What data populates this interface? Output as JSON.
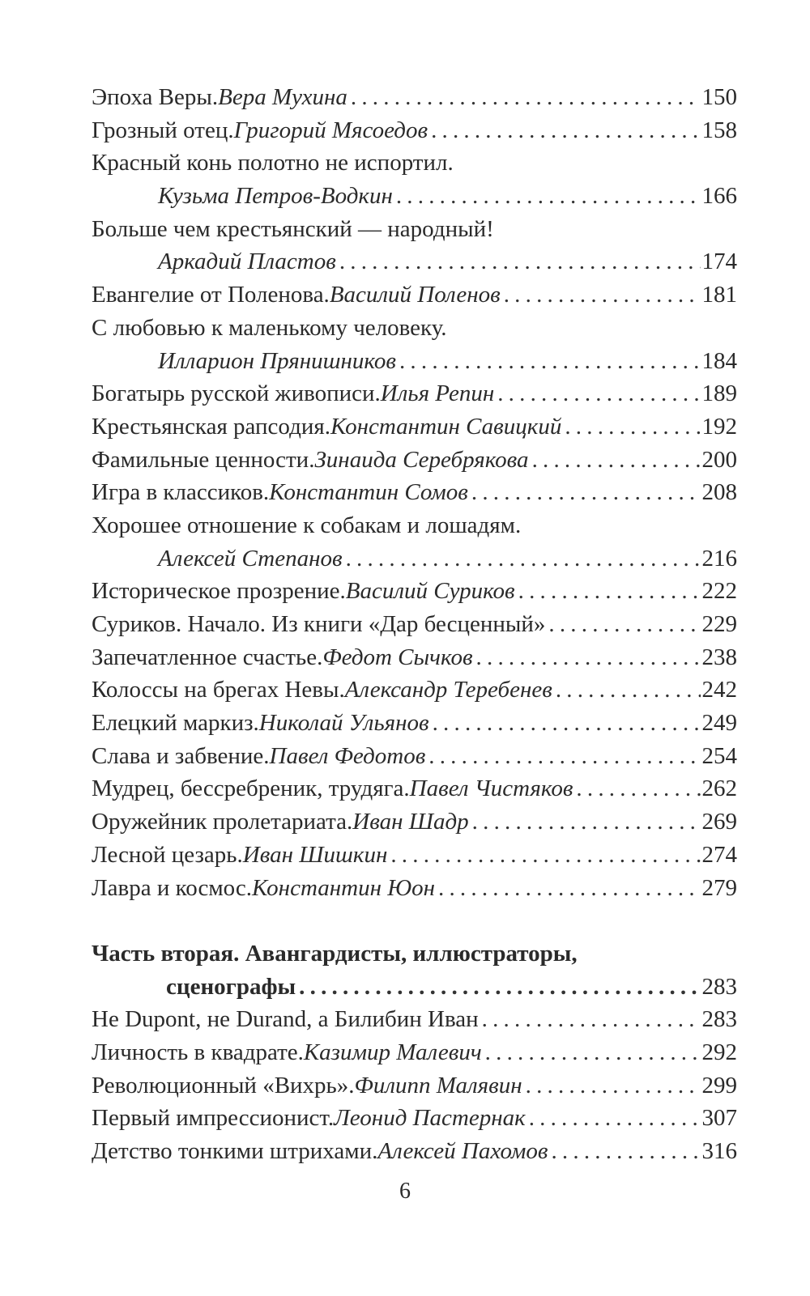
{
  "entries": [
    {
      "title": "Эпоха Веры. ",
      "author": "Вера Мухина",
      "page": "150"
    },
    {
      "title": "Грозный отец. ",
      "author": "Григорий Мясоедов",
      "page": "158"
    },
    {
      "title": "Красный конь полотно не испортил.",
      "author": "Кузьма Петров-Водкин",
      "page": "166",
      "wrap": true
    },
    {
      "title": "Больше чем крестьянский — народный!",
      "author": "Аркадий Пластов",
      "page": "174",
      "wrap": true
    },
    {
      "title": "Евангелие от Поленова. ",
      "author": "Василий Поленов",
      "page": "181"
    },
    {
      "title": "С любовью к маленькому человеку.",
      "author": "Илларион Прянишников",
      "page": "184",
      "wrap": true
    },
    {
      "title": "Богатырь русской живописи. ",
      "author": "Илья Репин",
      "page": "189"
    },
    {
      "title": "Крестьянская рапсодия. ",
      "author": "Константин Савицкий",
      "page": "192"
    },
    {
      "title": "Фамильные ценности. ",
      "author": "Зинаида Серебрякова",
      "page": "200"
    },
    {
      "title": "Игра в классиков. ",
      "author": "Константин Сомов",
      "page": "208"
    },
    {
      "title": "Хорошее отношение к собакам и лошадям.",
      "author": "Алексей Степанов",
      "page": "216",
      "wrap": true
    },
    {
      "title": "Историческое прозрение. ",
      "author": "Василий Суриков",
      "page": "222"
    },
    {
      "title": "Суриков. Начало. Из книги «Дар бесценный»",
      "author": "",
      "page": "229"
    },
    {
      "title": "Запечатленное счастье. ",
      "author": "Федот Сычков",
      "page": "238"
    },
    {
      "title": "Колоссы на брегах Невы.  ",
      "author": "Александр Теребенев",
      "page": "242"
    },
    {
      "title": "Елецкий маркиз. ",
      "author": "Николай Ульянов",
      "page": "249"
    },
    {
      "title": "Слава и забвение. ",
      "author": "Павел Федотов",
      "page": "254"
    },
    {
      "title": "Мудрец, бессребреник, трудяга. ",
      "author": "Павел Чистяков",
      "page": "262"
    },
    {
      "title": "Оружейник пролетариата. ",
      "author": "Иван Шадр",
      "page": "269"
    },
    {
      "title": "Лесной цезарь. ",
      "author": "Иван Шишкин",
      "page": "274"
    },
    {
      "title": "Лавра и космос. ",
      "author": "Константин Юон",
      "page": "279"
    }
  ],
  "part_two": {
    "heading_line1": "Часть вторая. Авангардисты, иллюстраторы,",
    "heading_line2": "сценографы",
    "page": "283",
    "entries": [
      {
        "title": "Не Dupont, не Durand, а Билибин Иван",
        "author": "",
        "page": "283"
      },
      {
        "title": "Личность в квадрате. ",
        "author": "Казимир Малевич",
        "page": "292"
      },
      {
        "title": "Революционный «Вихрь». ",
        "author": "Филипп Малявин",
        "page": "299"
      },
      {
        "title": "Первый импрессионист. ",
        "author": "Леонид Пастернак",
        "page": "307"
      },
      {
        "title": "Детство тонкими штрихами. ",
        "author": "Алексей Пахомов",
        "page": "316"
      }
    ]
  },
  "page_number": "6"
}
